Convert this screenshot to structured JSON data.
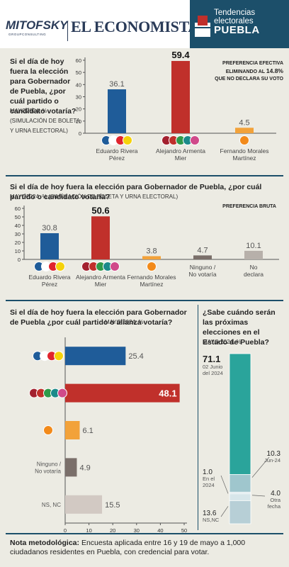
{
  "header": {
    "logo_left": "MITOFSKY",
    "logo_left_sub": "GROUPCONSULTING",
    "logo_right": "EL ECONOMISTA",
    "tag_line1": "Tendencias electorales",
    "tag_line2": "PUEBLA"
  },
  "section1": {
    "question": "Si el día de hoy fuera la elección para Gobernador de Puebla, ¿por cuál partido o candidato votaría?",
    "subtitle": "MAYO2024, % (SIMULACIÓN DE BOLETA Y URNA ELECTORAL)",
    "note_line1": "PREFERENCIA EFECTIVA",
    "note_line2": "ELIMINANDO AL",
    "note_pct": "14.8%",
    "note_line3": "QUE NO DECLARA SU VOTO"
  },
  "section2": {
    "question": "Si el día de hoy fuera la elección para Gobernador de Puebla, ¿por cuál partido o candidato votaría?",
    "subtitle": "MAYO2024, % (SIMULACIÓN DE BOLETA Y URNA ELECTORAL)",
    "note": "PREFERENCIA BRUTA"
  },
  "section3": {
    "question": "Si el día de hoy fuera la elección para Gobernador de Puebla ¿por cuál partido o alianza votaría?",
    "subtitle": "MAYO 2024, %"
  },
  "section4": {
    "question": "¿Sabe cuándo serán las próximas elecciones en el Estado de Puebla?",
    "subtitle": "MAYO 2024, %"
  },
  "footer": {
    "label": "Nota metodológica:",
    "text": "Encuesta aplicada entre 16 y 19 de mayo a 1,000 ciudadanos residentes en Puebla, con credencial para votar."
  },
  "chart_data": [
    {
      "type": "bar",
      "categories": [
        "Eduardo Rivera Pérez",
        "Alejandro Armenta Mier",
        "Fernando Morales Martínez"
      ],
      "values": [
        36.1,
        59.4,
        4.5
      ],
      "colors": [
        "#1f5c99",
        "#c0302b",
        "#f2a23a"
      ],
      "ylim": [
        0,
        60
      ],
      "yticks": [
        0,
        10,
        20,
        30,
        40,
        50,
        60
      ]
    },
    {
      "type": "bar",
      "categories": [
        "Eduardo Rivera Pérez",
        "Alejandro Armenta Mier",
        "Fernando Morales Martínez",
        "Ninguno / No votaría",
        "No declara"
      ],
      "values": [
        30.8,
        50.6,
        3.8,
        4.7,
        10.1
      ],
      "colors": [
        "#1f5c99",
        "#c0302b",
        "#f2a23a",
        "#7a6f6a",
        "#b7b0aa"
      ],
      "ylim": [
        0,
        60
      ],
      "yticks": [
        0,
        10,
        20,
        30,
        40,
        50,
        60
      ]
    },
    {
      "type": "bar",
      "orientation": "horizontal",
      "categories": [
        "PAN-PRI-PRD-PSI",
        "MORENA-PT-PVEM-NA-FXM",
        "MC",
        "Ninguno / No votaría",
        "NS, NC"
      ],
      "values": [
        25.4,
        48.1,
        6.1,
        4.9,
        15.5
      ],
      "colors": [
        "#1f5c99",
        "#c0302b",
        "#f2a23a",
        "#7a6f6a",
        "#d2c9c3"
      ],
      "xlim": [
        0,
        50
      ],
      "xticks": [
        0,
        10,
        20,
        30,
        40,
        50
      ]
    },
    {
      "type": "bar",
      "stacked": true,
      "categories": [
        "02 Junio del 2024",
        "Jun-24",
        "En el 2024",
        "Otra fecha",
        "NS,NC"
      ],
      "values": [
        71.1,
        10.3,
        1.0,
        4.0,
        13.6
      ],
      "colors": [
        "#2aa49b",
        "#9fc6cd",
        "#d7e6ea",
        "#d7e6ea",
        "#b7cfd6"
      ]
    }
  ]
}
